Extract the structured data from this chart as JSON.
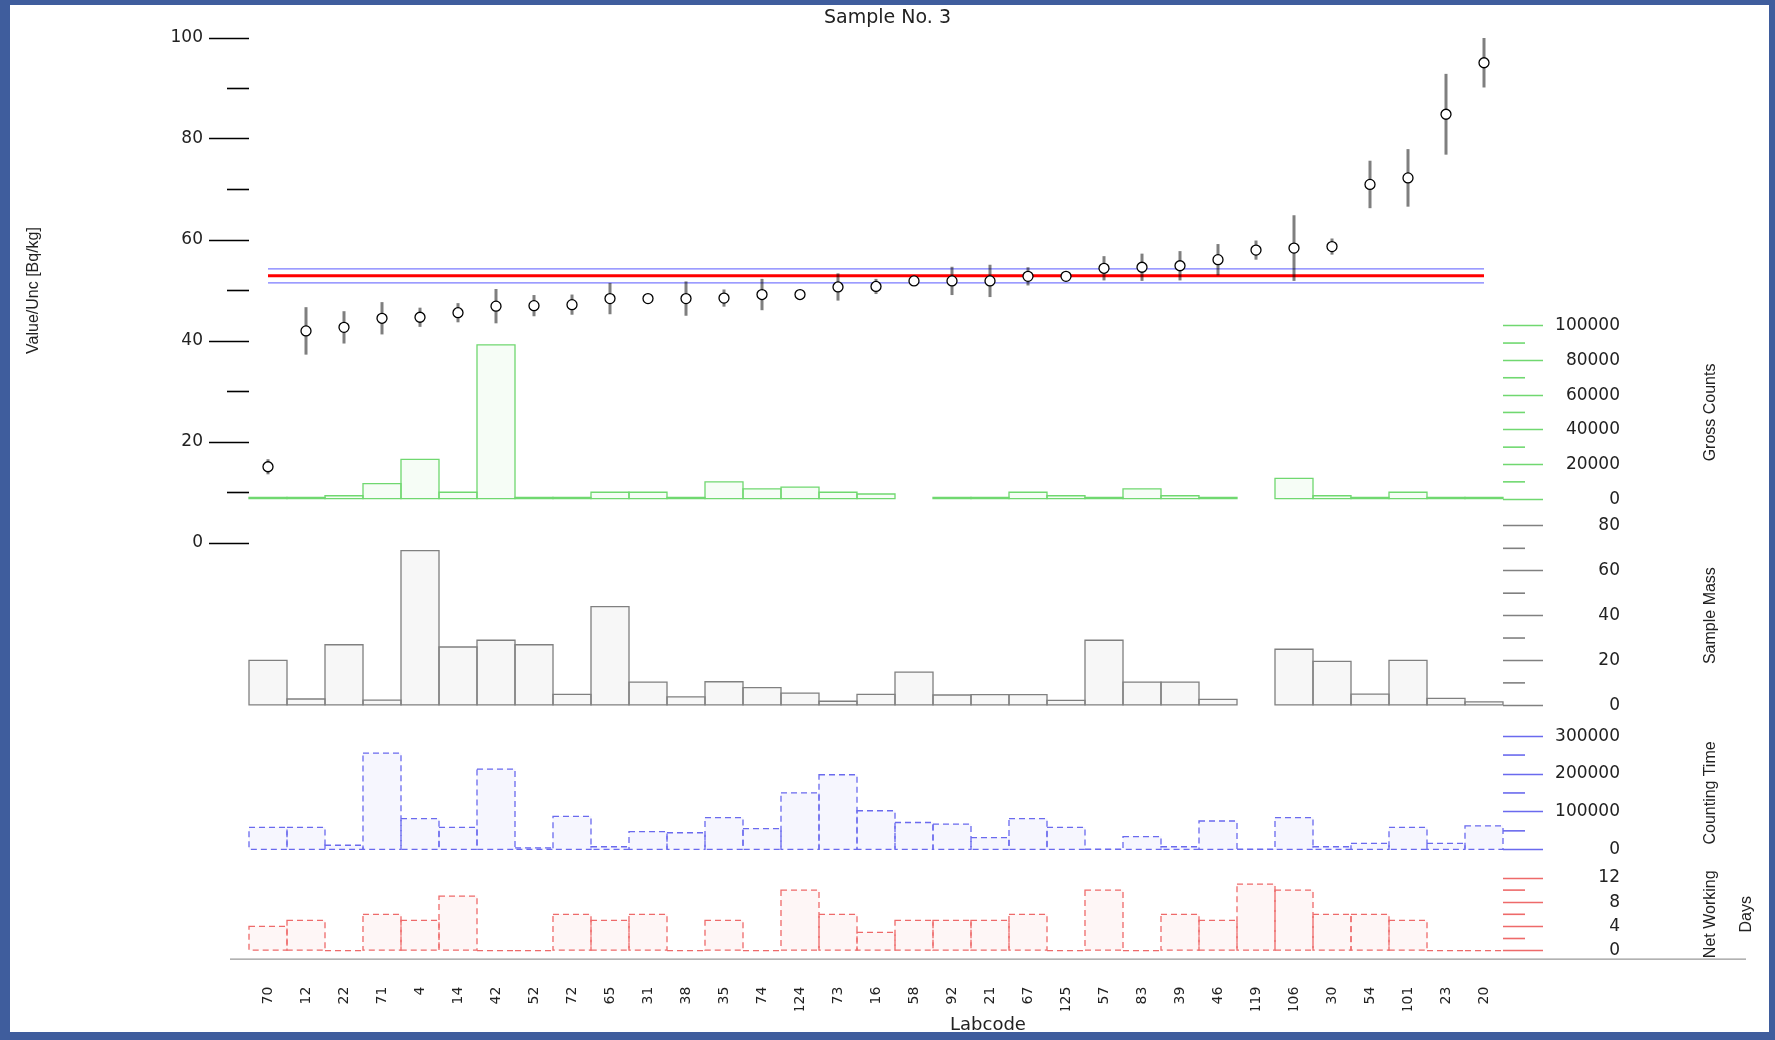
{
  "chart_data": [
    {
      "type": "scatter",
      "title": "Sample No. 3",
      "ylabel": "Value/Unc [Bq/kg]",
      "categories": [
        "70",
        "12",
        "22",
        "71",
        "4",
        "14",
        "42",
        "52",
        "72",
        "65",
        "31",
        "38",
        "35",
        "74",
        "124",
        "73",
        "16",
        "58",
        "92",
        "21",
        "67",
        "125",
        "57",
        "83",
        "39",
        "46",
        "119",
        "106",
        "30",
        "54",
        "101",
        "23",
        "20"
      ],
      "values": [
        15.1,
        42.0,
        42.7,
        44.5,
        44.7,
        45.6,
        46.9,
        47.0,
        47.2,
        48.4,
        48.4,
        48.4,
        48.5,
        49.2,
        49.2,
        50.7,
        50.8,
        51.9,
        51.9,
        51.9,
        52.8,
        52.8,
        54.4,
        54.6,
        54.9,
        56.1,
        58.0,
        58.4,
        58.7,
        71.0,
        72.3,
        84.9,
        95.1
      ],
      "errors": [
        1.5,
        4.7,
        3.2,
        3.2,
        1.9,
        1.9,
        3.4,
        2.1,
        2.0,
        3.1,
        1.0,
        3.4,
        1.7,
        3.1,
        0.9,
        2.7,
        1.5,
        0.6,
        2.8,
        3.2,
        1.8,
        0.3,
        2.4,
        2.7,
        2.9,
        3.1,
        1.9,
        6.5,
        1.6,
        4.7,
        5.7,
        8.0,
        4.9
      ],
      "color": "#000000",
      "marker": "circle",
      "ylim": [
        0,
        100
      ],
      "yticks": [
        0,
        20,
        40,
        60,
        80,
        100
      ],
      "ref_lines": [
        {
          "axis": "y",
          "value": 52.9,
          "color": "#ff0000"
        },
        {
          "axis": "y",
          "value": 54.3,
          "color": "#7b7bff"
        },
        {
          "axis": "y",
          "value": 51.5,
          "color": "#7b7bff"
        }
      ],
      "tick_labels": "y"
    },
    {
      "type": "bar",
      "ylabel": "Gross Counts",
      "categories": [
        "70",
        "12",
        "22",
        "71",
        "4",
        "14",
        "42",
        "52",
        "72",
        "65",
        "31",
        "38",
        "35",
        "74",
        "124",
        "73",
        "16",
        "58",
        "92",
        "21",
        "67",
        "125",
        "57",
        "83",
        "39",
        "46",
        "119",
        "106",
        "30",
        "54",
        "101",
        "23",
        "20"
      ],
      "values": [
        1000,
        1000,
        2000,
        9000,
        23000,
        4000,
        89000,
        1000,
        1000,
        4000,
        4000,
        1000,
        10000,
        6000,
        7000,
        4000,
        3000,
        null,
        1000,
        1000,
        4000,
        2000,
        1000,
        6000,
        2000,
        1000,
        null,
        12000,
        2000,
        1000,
        4000,
        1000,
        1000
      ],
      "color": "#70d870",
      "ylim": [
        0,
        100000
      ],
      "yticks": [
        0,
        20000,
        40000,
        60000,
        80000,
        100000
      ],
      "tick_labels": "y"
    },
    {
      "type": "bar",
      "ylabel": "Sample Mass",
      "categories": [
        "70",
        "12",
        "22",
        "71",
        "4",
        "14",
        "42",
        "52",
        "72",
        "65",
        "31",
        "38",
        "35",
        "74",
        "124",
        "73",
        "16",
        "58",
        "92",
        "21",
        "67",
        "125",
        "57",
        "83",
        "39",
        "46",
        "119",
        "106",
        "30",
        "54",
        "101",
        "23",
        "20"
      ],
      "values": [
        20,
        2.8,
        27,
        2.3,
        69,
        26,
        29,
        27,
        4.9,
        44,
        10.3,
        3.8,
        10.5,
        7.9,
        5.4,
        1.8,
        4.9,
        14.8,
        4.6,
        4.8,
        4.8,
        2.2,
        29,
        10.3,
        10.3,
        2.6,
        null,
        25,
        19.6,
        5,
        20,
        3.1,
        1.5
      ],
      "color": "#808080",
      "ylim": [
        0,
        80
      ],
      "yticks": [
        0,
        20,
        40,
        60,
        80
      ],
      "tick_labels": "y"
    },
    {
      "type": "bar",
      "ylabel": "Counting Time",
      "categories": [
        "70",
        "12",
        "22",
        "71",
        "4",
        "14",
        "42",
        "52",
        "72",
        "65",
        "31",
        "38",
        "35",
        "74",
        "124",
        "73",
        "16",
        "58",
        "92",
        "21",
        "67",
        "125",
        "57",
        "83",
        "39",
        "46",
        "119",
        "106",
        "30",
        "54",
        "101",
        "23",
        "20"
      ],
      "values": [
        59000,
        59000,
        12000,
        255000,
        82000,
        59000,
        213000,
        5000,
        88000,
        8000,
        48000,
        45000,
        85000,
        56000,
        150000,
        198000,
        103000,
        72000,
        68000,
        32000,
        82000,
        59000,
        2000,
        35000,
        8000,
        76000,
        2000,
        85000,
        8000,
        17000,
        59000,
        17000,
        63000
      ],
      "color": "#6a6aee",
      "line_style": "dashed",
      "ylim": [
        0,
        300000
      ],
      "yticks": [
        0,
        100000,
        200000,
        300000
      ],
      "tick_labels": "y"
    },
    {
      "type": "bar",
      "ylabel": "Net Working Days",
      "xlabel": "Labcode",
      "categories": [
        "70",
        "12",
        "22",
        "71",
        "4",
        "14",
        "42",
        "52",
        "72",
        "65",
        "31",
        "38",
        "35",
        "74",
        "124",
        "73",
        "16",
        "58",
        "92",
        "21",
        "67",
        "125",
        "57",
        "83",
        "39",
        "46",
        "119",
        "106",
        "30",
        "54",
        "101",
        "23",
        "20"
      ],
      "values": [
        4,
        5,
        0,
        6,
        5,
        9,
        0,
        0,
        6,
        5,
        6,
        0,
        5,
        0,
        10,
        6,
        3,
        5,
        5,
        5,
        6,
        0,
        10,
        0,
        6,
        5,
        11,
        10,
        6,
        6,
        5,
        0,
        0
      ],
      "color": "#ee6a6a",
      "line_style": "dashed",
      "ylim": [
        0,
        12
      ],
      "yticks": [
        0,
        4,
        8,
        12
      ]
    }
  ]
}
